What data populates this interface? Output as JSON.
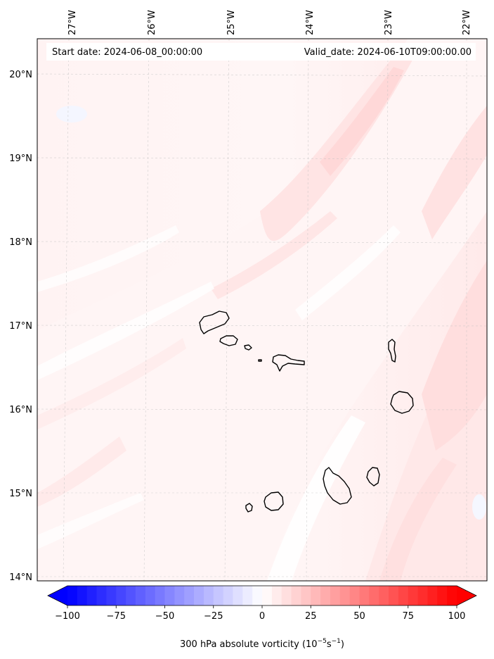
{
  "header": {
    "start_date": "Start date: 2024-06-08_00:00:00",
    "valid_date": "Valid_date: 2024-06-10T09:00:00.00"
  },
  "map": {
    "lon_labels": [
      "27°W",
      "26°W",
      "25°W",
      "24°W",
      "23°W",
      "22°W"
    ],
    "lat_labels": [
      "20°N",
      "19°N",
      "18°N",
      "17°N",
      "16°N",
      "15°N",
      "14°N"
    ],
    "extent": {
      "lon": [
        -27.35,
        -21.75
      ],
      "lat": [
        13.95,
        20.4
      ]
    },
    "field_colors": {
      "light": "#fff3f3",
      "medium": "#ffe6e6",
      "stronger": "#ffd9d9",
      "white": "#ffffff"
    },
    "islands": [
      "Santo Antão",
      "São Vicente",
      "Santa Luzia",
      "São Nicolau",
      "Sal",
      "Boa Vista",
      "Maio",
      "Santiago",
      "Fogo",
      "Brava"
    ]
  },
  "colorbar": {
    "label_main": "300 hPa absolute vorticity (",
    "label_base": "10",
    "label_exp": "−5",
    "label_unit": "s",
    "label_exp2": "−1",
    "label_close": ")",
    "ticks": [
      "−100",
      "−75",
      "−50",
      "−25",
      "0",
      "25",
      "50",
      "75",
      "100"
    ],
    "range": [
      -100,
      100
    ],
    "colors": {
      "min": "#0000ff",
      "mid": "#ffffff",
      "max": "#ff0000"
    }
  }
}
